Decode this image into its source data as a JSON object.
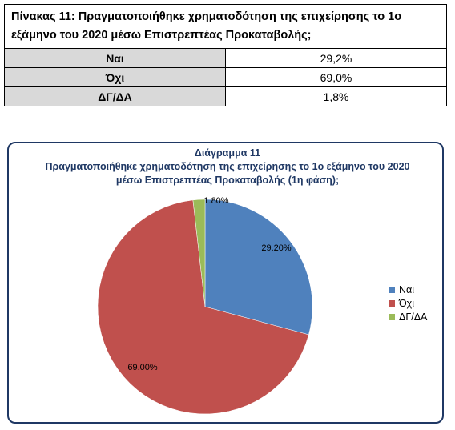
{
  "table": {
    "title": "Πίνακας 11: Πραγματοποιήθηκε χρηματοδότηση της επιχείρησης το 1ο εξάμηνο του 2020 μέσω Επιστρεπτέας Προκαταβολής;",
    "rows": [
      {
        "label": "Ναι",
        "value": "29,2%"
      },
      {
        "label": "Όχι",
        "value": "69,0%"
      },
      {
        "label": "ΔΓ/ΔΑ",
        "value": "1,8%"
      }
    ]
  },
  "chart_data": {
    "type": "pie",
    "title": "Διάγραμμα 11",
    "subtitle_lines": [
      "Πραγματοποιήθηκε χρηματοδότηση της επιχείρησης το 1ο εξάμηνο του 2020",
      "μέσω Επιστρεπτέας Προκαταβολής (1η φάση);"
    ],
    "categories": [
      "Ναι",
      "Όχι",
      "ΔΓ/ΔΑ"
    ],
    "values": [
      29.2,
      69.0,
      1.8
    ],
    "data_labels": [
      "29.20%",
      "69.00%",
      "1.80%"
    ],
    "colors": [
      "#4f81bd",
      "#c0504d",
      "#9bbb59"
    ],
    "legend_position": "right"
  }
}
